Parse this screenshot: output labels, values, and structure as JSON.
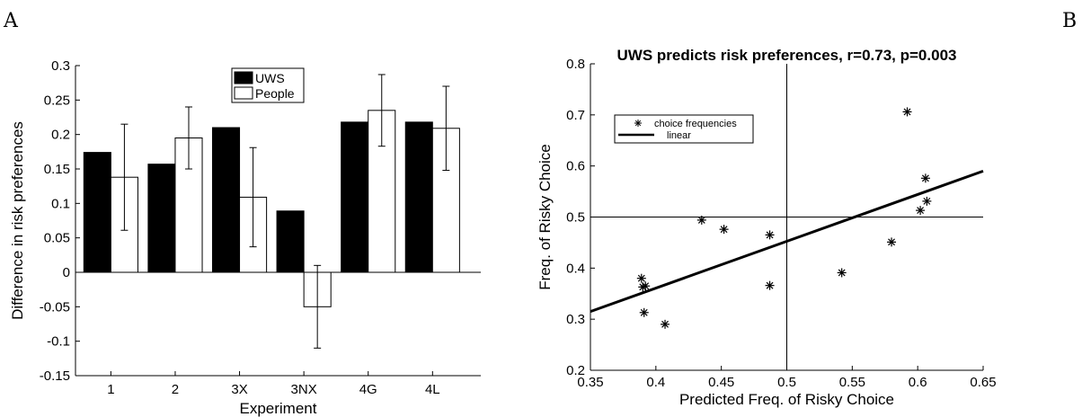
{
  "panels": {
    "left": "A",
    "right": "B"
  },
  "chart_data": [
    {
      "type": "bar",
      "title": "",
      "xlabel": "Experiment",
      "ylabel": "Difference in risk preferences",
      "categories": [
        "1",
        "2",
        "3X",
        "3NX",
        "4G",
        "4L"
      ],
      "ylim": [
        -0.15,
        0.3
      ],
      "yticks": [
        "-0.15",
        "-0.1",
        "-0.05",
        "0",
        "0.05",
        "0.1",
        "0.15",
        "0.2",
        "0.25",
        "0.3"
      ],
      "legend_placement": "top-center",
      "series": [
        {
          "name": "UWS",
          "color": "#000000",
          "values": [
            0.174,
            0.157,
            0.21,
            0.089,
            0.218,
            0.218
          ]
        },
        {
          "name": "People",
          "color": "#ffffff",
          "values": [
            0.138,
            0.195,
            0.109,
            -0.05,
            0.235,
            0.209
          ],
          "error": [
            0.077,
            0.045,
            0.072,
            0.06,
            0.052,
            0.061
          ]
        }
      ]
    },
    {
      "type": "scatter",
      "title": "UWS predicts risk preferences, r=0.73, p=0.003",
      "xlabel": "Predicted Freq. of Risky Choice",
      "ylabel": "Freq. of Risky Choice",
      "xlim": [
        0.35,
        0.65
      ],
      "ylim": [
        0.2,
        0.8
      ],
      "xticks": [
        "0.35",
        "0.4",
        "0.45",
        "0.5",
        "0.55",
        "0.6",
        "0.65"
      ],
      "yticks": [
        "0.2",
        "0.3",
        "0.4",
        "0.5",
        "0.6",
        "0.7",
        "0.8"
      ],
      "reference_lines": {
        "x": 0.5,
        "y": 0.5
      },
      "legend_placement": "top-left",
      "series": [
        {
          "name": "choice frequencies",
          "marker": "asterisk",
          "x": [
            0.389,
            0.391,
            0.39,
            0.392,
            0.407,
            0.435,
            0.452,
            0.487,
            0.487,
            0.542,
            0.58,
            0.592,
            0.602,
            0.606,
            0.607
          ],
          "y": [
            0.38,
            0.313,
            0.363,
            0.365,
            0.29,
            0.494,
            0.476,
            0.465,
            0.366,
            0.391,
            0.451,
            0.706,
            0.513,
            0.576,
            0.531
          ]
        },
        {
          "name": "linear",
          "type": "line",
          "x": [
            0.35,
            0.65
          ],
          "y": [
            0.315,
            0.59
          ]
        }
      ]
    }
  ]
}
